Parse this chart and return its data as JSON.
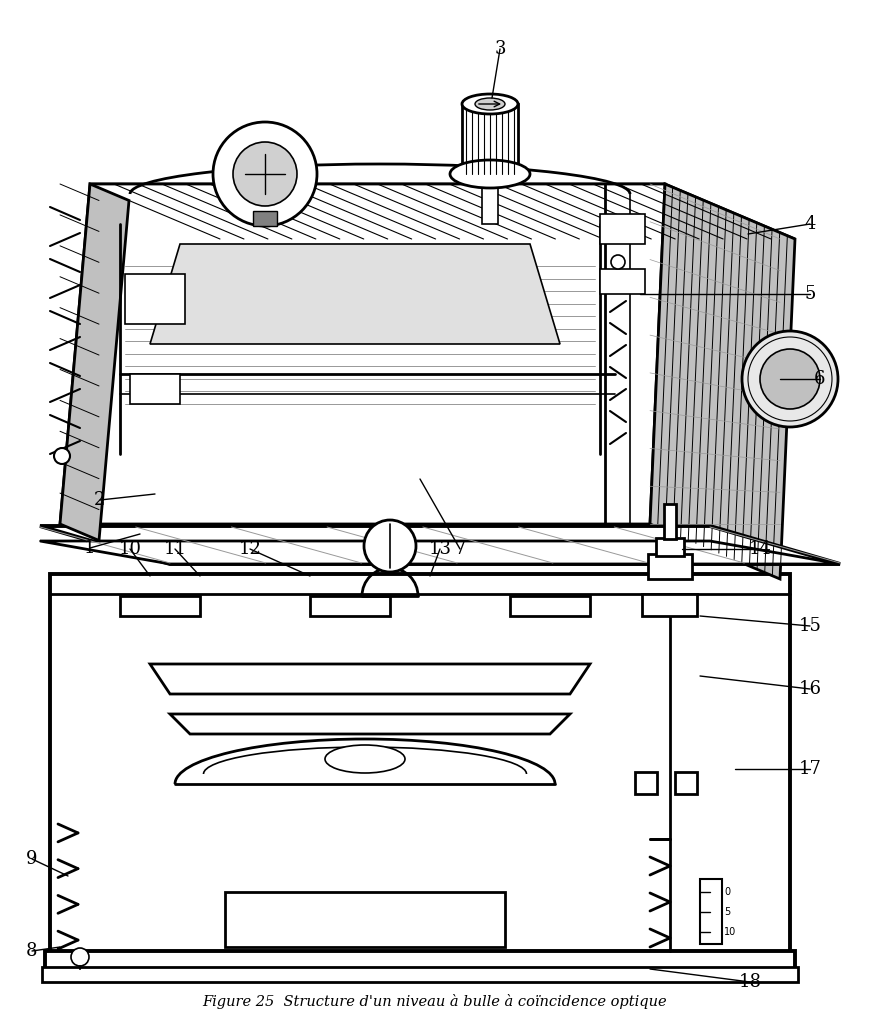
{
  "title": "Figure 25  Structure d'un niveau à bulle à coïncidence optique",
  "background_color": "#ffffff",
  "line_color": "#000000",
  "fig_width": 8.7,
  "fig_height": 10.24,
  "dpi": 100
}
